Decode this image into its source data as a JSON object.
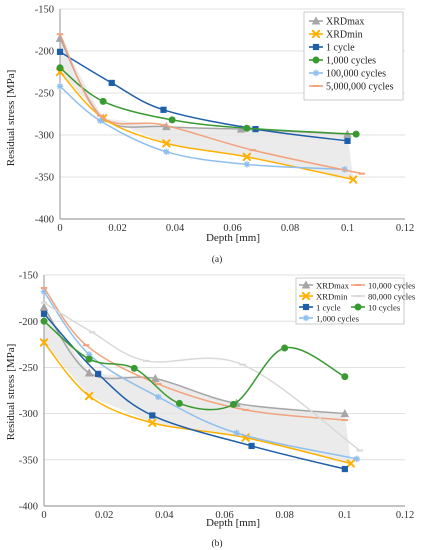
{
  "chart_data": [
    {
      "type": "line",
      "panel_label": "(a)",
      "xlabel": "Depth [mm]",
      "ylabel": "Residual stress [MPa]",
      "xlim": [
        0,
        0.12
      ],
      "ylim": [
        -400,
        -150
      ],
      "xticks": [
        0,
        0.02,
        0.04,
        0.06,
        0.08,
        0.1,
        0.12
      ],
      "xtick_labels": [
        "0",
        "0.02",
        "0.04",
        "0.06",
        "0.08",
        "0.1",
        "0.12"
      ],
      "yticks": [
        -400,
        -350,
        -300,
        -250,
        -200,
        -150
      ],
      "ytick_labels": [
        "-400",
        "-350",
        "-300",
        "-250",
        "-200",
        "-150"
      ],
      "legend_position": "top-right",
      "grid": "horizontal",
      "shaded_band": "between XRDmax and XRDmin",
      "series": [
        {
          "name": "XRDmax",
          "color": "#a6a6a6",
          "marker": "triangle",
          "x": [
            0,
            0.015,
            0.037,
            0.063,
            0.1
          ],
          "y": [
            -185,
            -280,
            -290,
            -293,
            -299
          ]
        },
        {
          "name": "XRDmin",
          "color": "#ffb000",
          "marker": "x",
          "x": [
            0,
            0.015,
            0.037,
            0.065,
            0.102
          ],
          "y": [
            -225,
            -280,
            -310,
            -326,
            -353
          ]
        },
        {
          "name": "1 cycle",
          "color": "#1f5fa8",
          "marker": "square",
          "x": [
            0,
            0.018,
            0.036,
            0.068,
            0.1
          ],
          "y": [
            -201,
            -238,
            -270,
            -293,
            -307
          ]
        },
        {
          "name": "1,000 cycles",
          "color": "#3a9a32",
          "marker": "circle",
          "x": [
            0,
            0.015,
            0.039,
            0.065,
            0.103
          ],
          "y": [
            -220,
            -260,
            -282,
            -292,
            -299
          ]
        },
        {
          "name": "100,000 cycles",
          "color": "#8fbfee",
          "marker": "star",
          "x": [
            0,
            0.014,
            0.037,
            0.065,
            0.099
          ],
          "y": [
            -242,
            -283,
            -320,
            -335,
            -341
          ]
        },
        {
          "name": "5,000,000 cycles",
          "color": "#f2a27c",
          "marker": "dash",
          "x": [
            0,
            0.014,
            0.036,
            0.067,
            0.105
          ],
          "y": [
            -180,
            -277,
            -288,
            -318,
            -346
          ]
        }
      ]
    },
    {
      "type": "line",
      "panel_label": "(b)",
      "xlabel": "Depth [mm]",
      "ylabel": "Residual stress [MPa]",
      "xlim": [
        0,
        0.12
      ],
      "ylim": [
        -400,
        -150
      ],
      "xticks": [
        0,
        0.02,
        0.04,
        0.06,
        0.08,
        0.1,
        0.12
      ],
      "xtick_labels": [
        "0",
        "0.02",
        "0.04",
        "0.06",
        "0.08",
        "0.1",
        "0.12"
      ],
      "yticks": [
        -400,
        -350,
        -300,
        -250,
        -200,
        -150
      ],
      "ytick_labels": [
        "-400",
        "-350",
        "-300",
        "-250",
        "-200",
        "-150"
      ],
      "legend_position": "top-right",
      "grid": "horizontal",
      "shaded_band": "between XRDmax and XRDmin",
      "series": [
        {
          "name": "XRDmax",
          "color": "#a6a6a6",
          "marker": "triangle",
          "x": [
            0,
            0.015,
            0.037,
            0.064,
            0.1
          ],
          "y": [
            -185,
            -256,
            -262,
            -289,
            -300
          ]
        },
        {
          "name": "XRDmin",
          "color": "#ffb000",
          "marker": "x",
          "x": [
            0,
            0.015,
            0.036,
            0.067,
            0.102
          ],
          "y": [
            -223,
            -281,
            -310,
            -326,
            -354
          ]
        },
        {
          "name": "1 cycle",
          "color": "#1f5fa8",
          "marker": "square",
          "x": [
            0,
            0.018,
            0.036,
            0.069,
            0.1
          ],
          "y": [
            -192,
            -257,
            -302,
            -335,
            -360
          ]
        },
        {
          "name": "1,000 cycles",
          "color": "#8fbfee",
          "marker": "star",
          "x": [
            0,
            0.015,
            0.038,
            0.064,
            0.104
          ],
          "y": [
            -168,
            -236,
            -282,
            -321,
            -349
          ]
        },
        {
          "name": "10,000 cycles",
          "color": "#f2a27c",
          "marker": "dash",
          "x": [
            0,
            0.014,
            0.038,
            0.067,
            0.1
          ],
          "y": [
            -164,
            -226,
            -268,
            -296,
            -307
          ]
        },
        {
          "name": "80,000 cycles",
          "color": "#d9d9d9",
          "marker": "dash",
          "x": [
            0,
            0.016,
            0.034,
            0.066,
            0.105
          ],
          "y": [
            -180,
            -212,
            -243,
            -247,
            -340
          ]
        },
        {
          "name": "10 cycles",
          "color": "#3a9a32",
          "marker": "circle",
          "x": [
            0,
            0.015,
            0.03,
            0.045,
            0.063,
            0.08,
            0.1
          ],
          "y": [
            -200,
            -241,
            -251,
            -289,
            -290,
            -229,
            -260
          ]
        }
      ]
    }
  ]
}
